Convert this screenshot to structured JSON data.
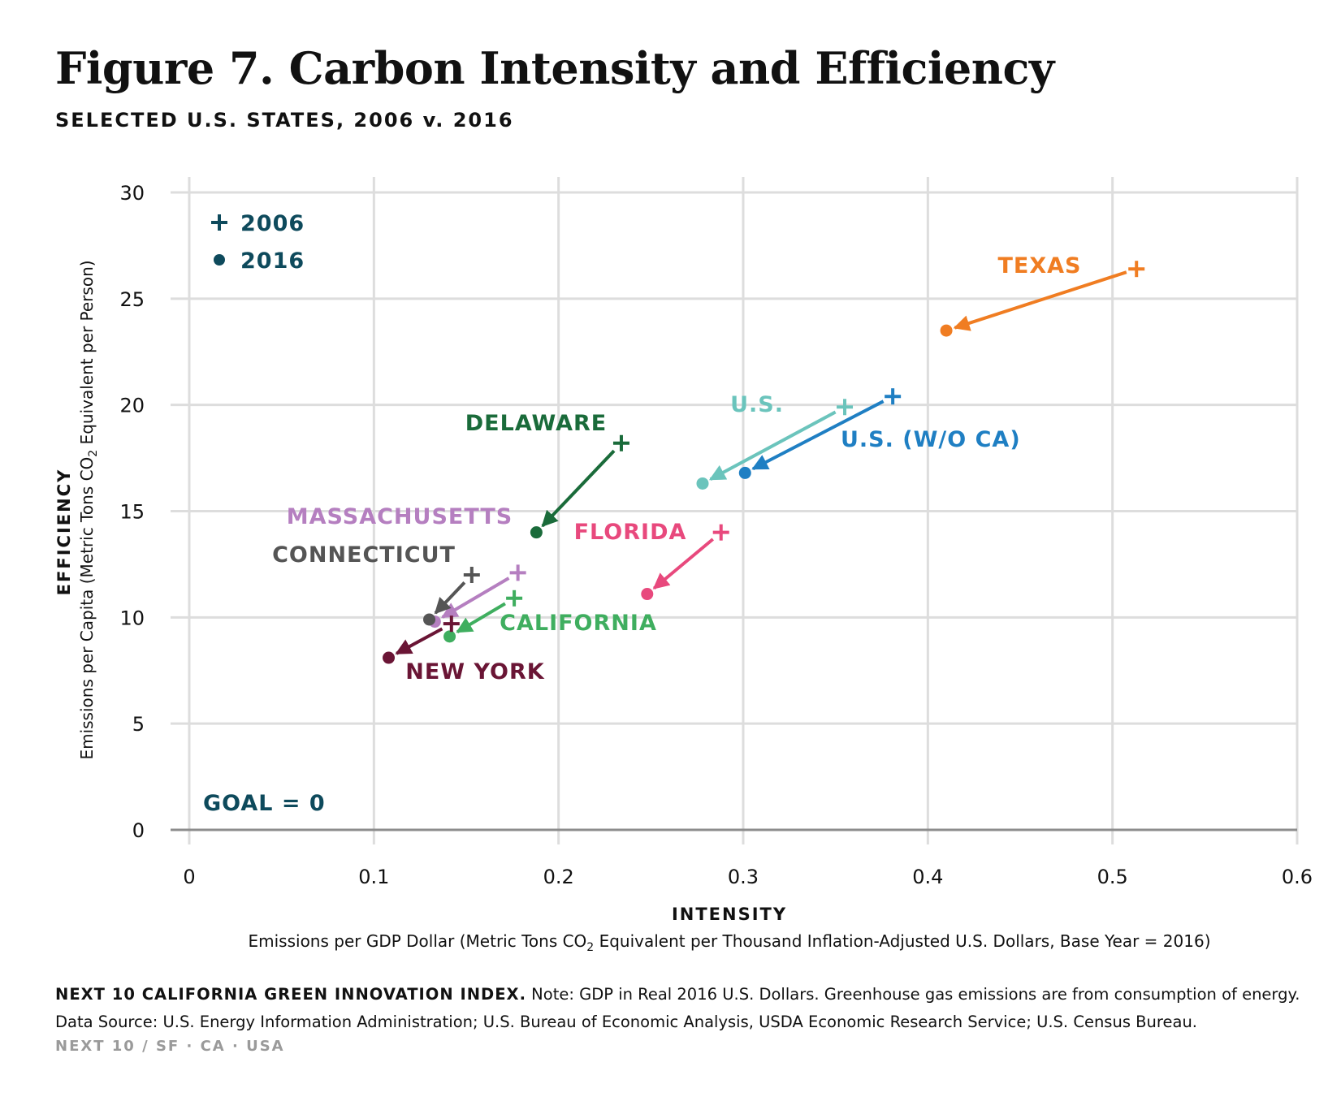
{
  "title": "Figure 7. Carbon Intensity and Efficiency",
  "subtitle": "SELECTED U.S. STATES, 2006 v. 2016",
  "footer": {
    "source": "NEXT 10 CALIFORNIA GREEN INNOVATION INDEX.",
    "note": " Note: GDP in Real 2016 U.S. Dollars. Greenhouse gas emissions are from consumption of energy. Data Source: U.S. Energy Information Administration; U.S. Bureau of Economic Analysis, USDA Economic Research Service; U.S. Census Bureau.",
    "credit": "NEXT 10  /  SF · CA · USA"
  },
  "colors": {
    "axis_dark": "#0e4a5c",
    "grid": "#dddddd",
    "baseline": "#8c8c8c"
  },
  "chart_data": {
    "type": "scatter",
    "x_title": "INTENSITY",
    "x_subtitle_pre": "Emissions per GDP Dollar (Metric Tons CO",
    "x_subtitle_sub": "2",
    "x_subtitle_post": " Equivalent per Thousand Inflation-Adjusted U.S. Dollars, Base Year = 2016)",
    "y_title": "EFFICIENCY",
    "y_subtitle_pre": "Emissions per Capita (Metric Tons CO",
    "y_subtitle_sub": "2",
    "y_subtitle_post": " Equivalent per Person)",
    "xlim": [
      0,
      0.6
    ],
    "ylim": [
      0,
      30
    ],
    "x_ticks": [
      0,
      0.1,
      0.2,
      0.3,
      0.4,
      0.5,
      0.6
    ],
    "x_tick_labels": [
      "0",
      "0.1",
      "0.2",
      "0.3",
      "0.4",
      "0.5",
      "0.6"
    ],
    "y_ticks": [
      0,
      5,
      10,
      15,
      20,
      25,
      30
    ],
    "y_tick_labels": [
      "0",
      "5",
      "10",
      "15",
      "20",
      "25",
      "30"
    ],
    "grid": true,
    "legend": {
      "position": "top-left",
      "entries": [
        {
          "marker": "plus",
          "label": "2006"
        },
        {
          "marker": "circle",
          "label": "2016"
        }
      ]
    },
    "goal_annotation": "GOAL = 0",
    "series": [
      {
        "name": "TEXAS",
        "color": "#f07d22",
        "x2006": 0.513,
        "y2006": 26.4,
        "x2016": 0.41,
        "y2016": 23.5
      },
      {
        "name": "U.S.",
        "color": "#6bc4bc",
        "x2006": 0.355,
        "y2006": 19.9,
        "x2016": 0.278,
        "y2016": 16.3
      },
      {
        "name": "U.S. (W/O CA)",
        "color": "#1f7fc3",
        "x2006": 0.381,
        "y2006": 20.4,
        "x2016": 0.301,
        "y2016": 16.8
      },
      {
        "name": "DELAWARE",
        "color": "#1a6b3a",
        "x2006": 0.234,
        "y2006": 18.2,
        "x2016": 0.188,
        "y2016": 14.0
      },
      {
        "name": "FLORIDA",
        "color": "#e8497d",
        "x2006": 0.288,
        "y2006": 14.0,
        "x2016": 0.248,
        "y2016": 11.1
      },
      {
        "name": "MASSACHUSETTS",
        "color": "#b57fc0",
        "x2006": 0.178,
        "y2006": 12.1,
        "x2016": 0.133,
        "y2016": 9.8
      },
      {
        "name": "CONNECTICUT",
        "color": "#555555",
        "x2006": 0.153,
        "y2006": 12.0,
        "x2016": 0.13,
        "y2016": 9.9
      },
      {
        "name": "CALIFORNIA",
        "color": "#3fae5f",
        "x2006": 0.176,
        "y2006": 10.9,
        "x2016": 0.141,
        "y2016": 9.1
      },
      {
        "name": "NEW YORK",
        "color": "#6a1535",
        "x2006": 0.142,
        "y2006": 9.7,
        "x2016": 0.108,
        "y2016": 8.1
      }
    ]
  }
}
